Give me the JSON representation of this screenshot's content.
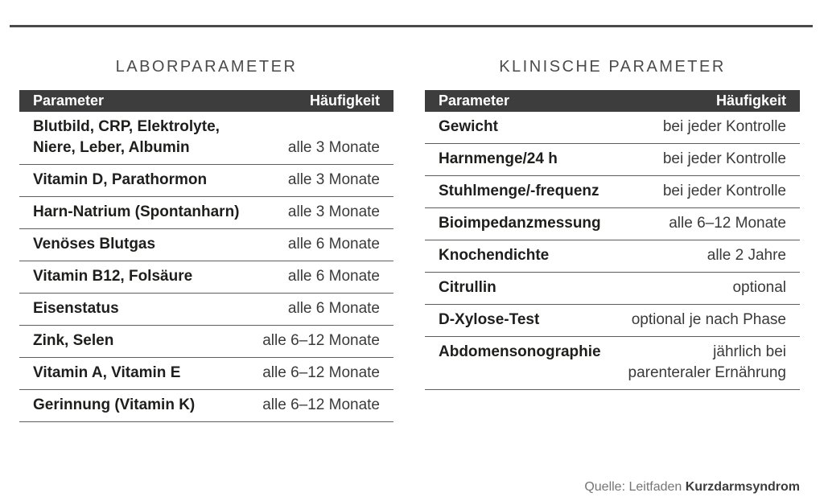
{
  "page": {
    "background": "#ffffff",
    "rule_color": "#4a4a4a",
    "header_bar_color": "#3d3d3d",
    "header_text_color": "#ffffff",
    "title_color": "#4b4b4b",
    "name_text_color": "#1e1e1c",
    "value_text_color": "#3a3a3a"
  },
  "tables": [
    {
      "title": "LABORPARAMETER",
      "columns": {
        "parameter": "Parameter",
        "frequency": "Häufigkeit"
      },
      "rows": [
        {
          "parameter": "Blutbild, CRP, Elektrolyte,\nNiere, Leber, Albumin",
          "frequency": "alle 3 Monate"
        },
        {
          "parameter": "Vitamin D, Parathormon",
          "frequency": "alle 3 Monate"
        },
        {
          "parameter": "Harn-Natrium (Spontanharn)",
          "frequency": "alle 3 Monate"
        },
        {
          "parameter": "Venöses Blutgas",
          "frequency": "alle 6 Monate"
        },
        {
          "parameter": "Vitamin B12, Folsäure",
          "frequency": "alle 6 Monate"
        },
        {
          "parameter": "Eisenstatus",
          "frequency": "alle 6 Monate"
        },
        {
          "parameter": "Zink, Selen",
          "frequency": "alle 6–12 Monate"
        },
        {
          "parameter": "Vitamin A, Vitamin E",
          "frequency": "alle 6–12 Monate"
        },
        {
          "parameter": "Gerinnung (Vitamin K)",
          "frequency": "alle 6–12 Monate"
        }
      ]
    },
    {
      "title": "KLINISCHE PARAMETER",
      "columns": {
        "parameter": "Parameter",
        "frequency": "Häufigkeit"
      },
      "rows": [
        {
          "parameter": "Gewicht",
          "frequency": "bei jeder Kontrolle"
        },
        {
          "parameter": "Harnmenge/24 h",
          "frequency": "bei jeder Kontrolle"
        },
        {
          "parameter": "Stuhlmenge/-frequenz",
          "frequency": "bei jeder Kontrolle"
        },
        {
          "parameter": "Bioimpedanzmessung",
          "frequency": "alle 6–12 Monate"
        },
        {
          "parameter": "Knochendichte",
          "frequency": "alle 2 Jahre"
        },
        {
          "parameter": "Citrullin",
          "frequency": "optional"
        },
        {
          "parameter": "D-Xylose-Test",
          "frequency": "optional je nach Phase"
        },
        {
          "parameter": "Abdomensonographie",
          "frequency": "jährlich bei\nparenteraler Ernährung"
        }
      ]
    }
  ],
  "source": {
    "prefix": "Quelle: Leitfaden ",
    "bold": "Kurzdarmsyndrom"
  }
}
